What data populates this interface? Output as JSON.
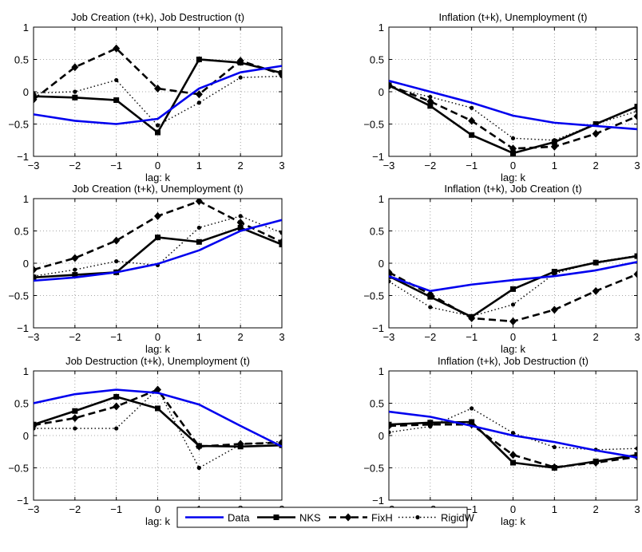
{
  "chart_data": [
    {
      "type": "line",
      "title": "Job Creation (t+k), Job Destruction (t)",
      "xlabel": "lag: k",
      "ylabel": "",
      "x": [
        -3,
        -2,
        -1,
        0,
        1,
        2,
        3
      ],
      "xlim": [
        -3,
        3
      ],
      "ylim": [
        -1,
        1
      ],
      "xticks": [
        "−3",
        "−2",
        "−1",
        "0",
        "1",
        "2",
        "3"
      ],
      "yticks": [
        "−1",
        "−0.5",
        "0",
        "0.5",
        "1"
      ],
      "grid": true,
      "series": [
        {
          "name": "Data",
          "values": [
            -0.35,
            -0.45,
            -0.5,
            -0.42,
            0.05,
            0.3,
            0.4
          ]
        },
        {
          "name": "NKS",
          "values": [
            -0.07,
            -0.09,
            -0.13,
            -0.63,
            0.5,
            0.45,
            0.29
          ]
        },
        {
          "name": "FixH",
          "values": [
            -0.12,
            0.38,
            0.67,
            0.05,
            -0.04,
            0.48,
            0.27
          ]
        },
        {
          "name": "RigidW",
          "values": [
            -0.02,
            0.0,
            0.18,
            -0.52,
            -0.17,
            0.22,
            0.24
          ]
        }
      ]
    },
    {
      "type": "line",
      "title": "Inflation (t+k), Unemployment (t)",
      "xlabel": "lag: k",
      "ylabel": "",
      "x": [
        -3,
        -2,
        -1,
        0,
        1,
        2,
        3
      ],
      "xlim": [
        -3,
        3
      ],
      "ylim": [
        -1,
        1
      ],
      "xticks": [
        "−3",
        "−2",
        "−1",
        "0",
        "1",
        "2",
        "3"
      ],
      "yticks": [
        "−1",
        "−0.5",
        "0",
        "0.5",
        "1"
      ],
      "grid": true,
      "series": [
        {
          "name": "Data",
          "values": [
            0.17,
            0.0,
            -0.17,
            -0.37,
            -0.48,
            -0.53,
            -0.58
          ]
        },
        {
          "name": "NKS",
          "values": [
            0.1,
            -0.22,
            -0.67,
            -0.95,
            -0.78,
            -0.5,
            -0.23
          ]
        },
        {
          "name": "FixH",
          "values": [
            0.1,
            -0.15,
            -0.45,
            -0.88,
            -0.85,
            -0.65,
            -0.38
          ]
        },
        {
          "name": "RigidW",
          "values": [
            0.07,
            -0.08,
            -0.25,
            -0.72,
            -0.75,
            -0.5,
            -0.3
          ]
        }
      ]
    },
    {
      "type": "line",
      "title": "Job Creation (t+k), Unemployment (t)",
      "xlabel": "lag: k",
      "ylabel": "",
      "x": [
        -3,
        -2,
        -1,
        0,
        1,
        2,
        3
      ],
      "xlim": [
        -3,
        3
      ],
      "ylim": [
        -1,
        1
      ],
      "xticks": [
        "−3",
        "−2",
        "−1",
        "0",
        "1",
        "2",
        "3"
      ],
      "yticks": [
        "−1",
        "−0.5",
        "0",
        "0.5",
        "1"
      ],
      "grid": true,
      "series": [
        {
          "name": "Data",
          "values": [
            -0.27,
            -0.22,
            -0.14,
            -0.01,
            0.2,
            0.5,
            0.67
          ]
        },
        {
          "name": "NKS",
          "values": [
            -0.22,
            -0.18,
            -0.14,
            0.4,
            0.33,
            0.55,
            0.29
          ]
        },
        {
          "name": "FixH",
          "values": [
            -0.1,
            0.08,
            0.35,
            0.73,
            0.96,
            0.63,
            0.33
          ]
        },
        {
          "name": "RigidW",
          "values": [
            -0.2,
            -0.1,
            0.03,
            -0.03,
            0.55,
            0.73,
            0.47
          ]
        }
      ]
    },
    {
      "type": "line",
      "title": "Inflation (t+k), Job Creation (t)",
      "xlabel": "lag: k",
      "ylabel": "",
      "x": [
        -3,
        -2,
        -1,
        0,
        1,
        2,
        3
      ],
      "xlim": [
        -3,
        3
      ],
      "ylim": [
        -1,
        1
      ],
      "xticks": [
        "−3",
        "−2",
        "−1",
        "0",
        "1",
        "2",
        "3"
      ],
      "yticks": [
        "−1",
        "−0.5",
        "0",
        "0.5",
        "1"
      ],
      "grid": true,
      "series": [
        {
          "name": "Data",
          "values": [
            -0.2,
            -0.43,
            -0.33,
            -0.26,
            -0.2,
            -0.11,
            0.02
          ]
        },
        {
          "name": "NKS",
          "values": [
            -0.2,
            -0.52,
            -0.83,
            -0.4,
            -0.13,
            0.01,
            0.11
          ]
        },
        {
          "name": "FixH",
          "values": [
            -0.14,
            -0.48,
            -0.85,
            -0.9,
            -0.72,
            -0.43,
            -0.17
          ]
        },
        {
          "name": "RigidW",
          "values": [
            -0.28,
            -0.68,
            -0.82,
            -0.64,
            -0.16,
            0.02,
            0.12
          ]
        }
      ]
    },
    {
      "type": "line",
      "title": "Job Destruction (t+k), Unemployment (t)",
      "xlabel": "lag: k",
      "ylabel": "",
      "x": [
        -3,
        -2,
        -1,
        0,
        1,
        2,
        3
      ],
      "xlim": [
        -3,
        3
      ],
      "ylim": [
        -1,
        1
      ],
      "xticks": [
        "−3",
        "−2",
        "−1",
        "0",
        "1",
        "2",
        "3"
      ],
      "yticks": [
        "−1",
        "−0.5",
        "0",
        "0.5",
        "1"
      ],
      "grid": true,
      "series": [
        {
          "name": "Data",
          "values": [
            0.5,
            0.64,
            0.71,
            0.66,
            0.48,
            0.15,
            -0.17
          ]
        },
        {
          "name": "NKS",
          "values": [
            0.17,
            0.38,
            0.6,
            0.42,
            -0.16,
            -0.17,
            -0.15
          ]
        },
        {
          "name": "FixH",
          "values": [
            0.16,
            0.27,
            0.45,
            0.71,
            -0.17,
            -0.13,
            -0.11
          ]
        },
        {
          "name": "RigidW",
          "values": [
            0.11,
            0.11,
            0.11,
            0.72,
            -0.5,
            -0.14,
            -0.09
          ]
        }
      ]
    },
    {
      "type": "line",
      "title": "Inflation (t+k), Job Destruction (t)",
      "xlabel": "lag: k",
      "ylabel": "",
      "x": [
        -3,
        -2,
        -1,
        0,
        1,
        2,
        3
      ],
      "xlim": [
        -3,
        3
      ],
      "ylim": [
        -1,
        1
      ],
      "xticks": [
        "−3",
        "−2",
        "−1",
        "0",
        "1",
        "2",
        "3"
      ],
      "yticks": [
        "−1",
        "−0.5",
        "0",
        "0.5",
        "1"
      ],
      "grid": true,
      "series": [
        {
          "name": "Data",
          "values": [
            0.37,
            0.29,
            0.15,
            0.0,
            -0.1,
            -0.23,
            -0.34
          ]
        },
        {
          "name": "NKS",
          "values": [
            0.17,
            0.2,
            0.21,
            -0.42,
            -0.5,
            -0.4,
            -0.3
          ]
        },
        {
          "name": "FixH",
          "values": [
            0.15,
            0.17,
            0.17,
            -0.3,
            -0.49,
            -0.42,
            -0.33
          ]
        },
        {
          "name": "RigidW",
          "values": [
            0.05,
            0.14,
            0.42,
            0.04,
            -0.18,
            -0.22,
            -0.2
          ]
        }
      ]
    }
  ],
  "legend": {
    "entries": [
      "Data",
      "NKS",
      "FixH",
      "RigidW"
    ],
    "placement": "bottom-center"
  },
  "colors": {
    "Data": "#0000ee",
    "NKS": "#000000",
    "FixH": "#000000",
    "RigidW": "#000000",
    "grid": "#8a8a8a",
    "axis": "#000000"
  },
  "markers": {
    "Data": "none",
    "NKS": "square",
    "FixH": "diamond",
    "RigidW": "dot"
  },
  "line_styles": {
    "Data": "solid",
    "NKS": "solid",
    "FixH": "dashed",
    "RigidW": "dotted"
  }
}
